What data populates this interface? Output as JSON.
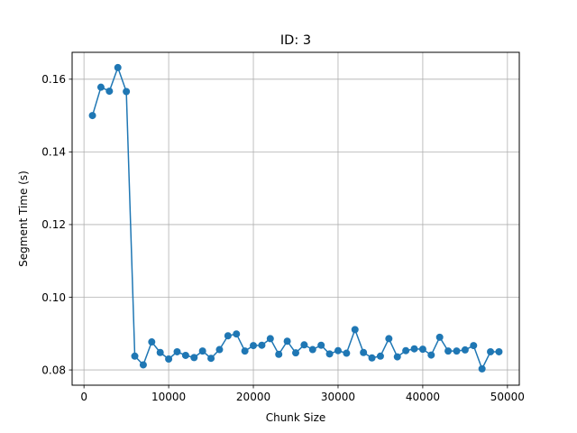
{
  "chart_data": {
    "type": "line",
    "title": "ID: 3",
    "xlabel": "Chunk Size",
    "ylabel": "Segment Time (s)",
    "xlim": [
      -1400,
      51400
    ],
    "ylim": [
      0.0758,
      0.1674
    ],
    "xticks": [
      0,
      10000,
      20000,
      30000,
      40000,
      50000
    ],
    "yticks": [
      0.08,
      0.1,
      0.12,
      0.14,
      0.16
    ],
    "ytick_labels": [
      "0.08",
      "0.10",
      "0.12",
      "0.14",
      "0.16"
    ],
    "grid": true,
    "marker": "circle",
    "color": "#1f77b4",
    "series": [
      {
        "x": [
          1000,
          2000,
          3000,
          4000,
          5000,
          6000,
          7000,
          8000,
          9000,
          10000,
          11000,
          12000,
          13000,
          14000,
          15000,
          16000,
          17000,
          18000,
          19000,
          20000,
          21000,
          22000,
          23000,
          24000,
          25000,
          26000,
          27000,
          28000,
          29000,
          30000,
          31000,
          32000,
          33000,
          34000,
          35000,
          36000,
          37000,
          38000,
          39000,
          40000,
          41000,
          42000,
          43000,
          44000,
          45000,
          46000,
          47000,
          48000,
          49000
        ],
        "y": [
          0.15,
          0.1578,
          0.1567,
          0.1632,
          0.1566,
          0.0838,
          0.0814,
          0.0877,
          0.0848,
          0.083,
          0.085,
          0.084,
          0.0834,
          0.0852,
          0.0832,
          0.0856,
          0.0894,
          0.0899,
          0.0852,
          0.0867,
          0.0868,
          0.0886,
          0.0843,
          0.0879,
          0.0847,
          0.0869,
          0.0856,
          0.0868,
          0.0844,
          0.0853,
          0.0846,
          0.0911,
          0.0848,
          0.0833,
          0.0838,
          0.0886,
          0.0836,
          0.0853,
          0.0858,
          0.0857,
          0.0841,
          0.089,
          0.0852,
          0.0852,
          0.0855,
          0.0867,
          0.0803,
          0.085,
          0.085
        ]
      }
    ]
  }
}
